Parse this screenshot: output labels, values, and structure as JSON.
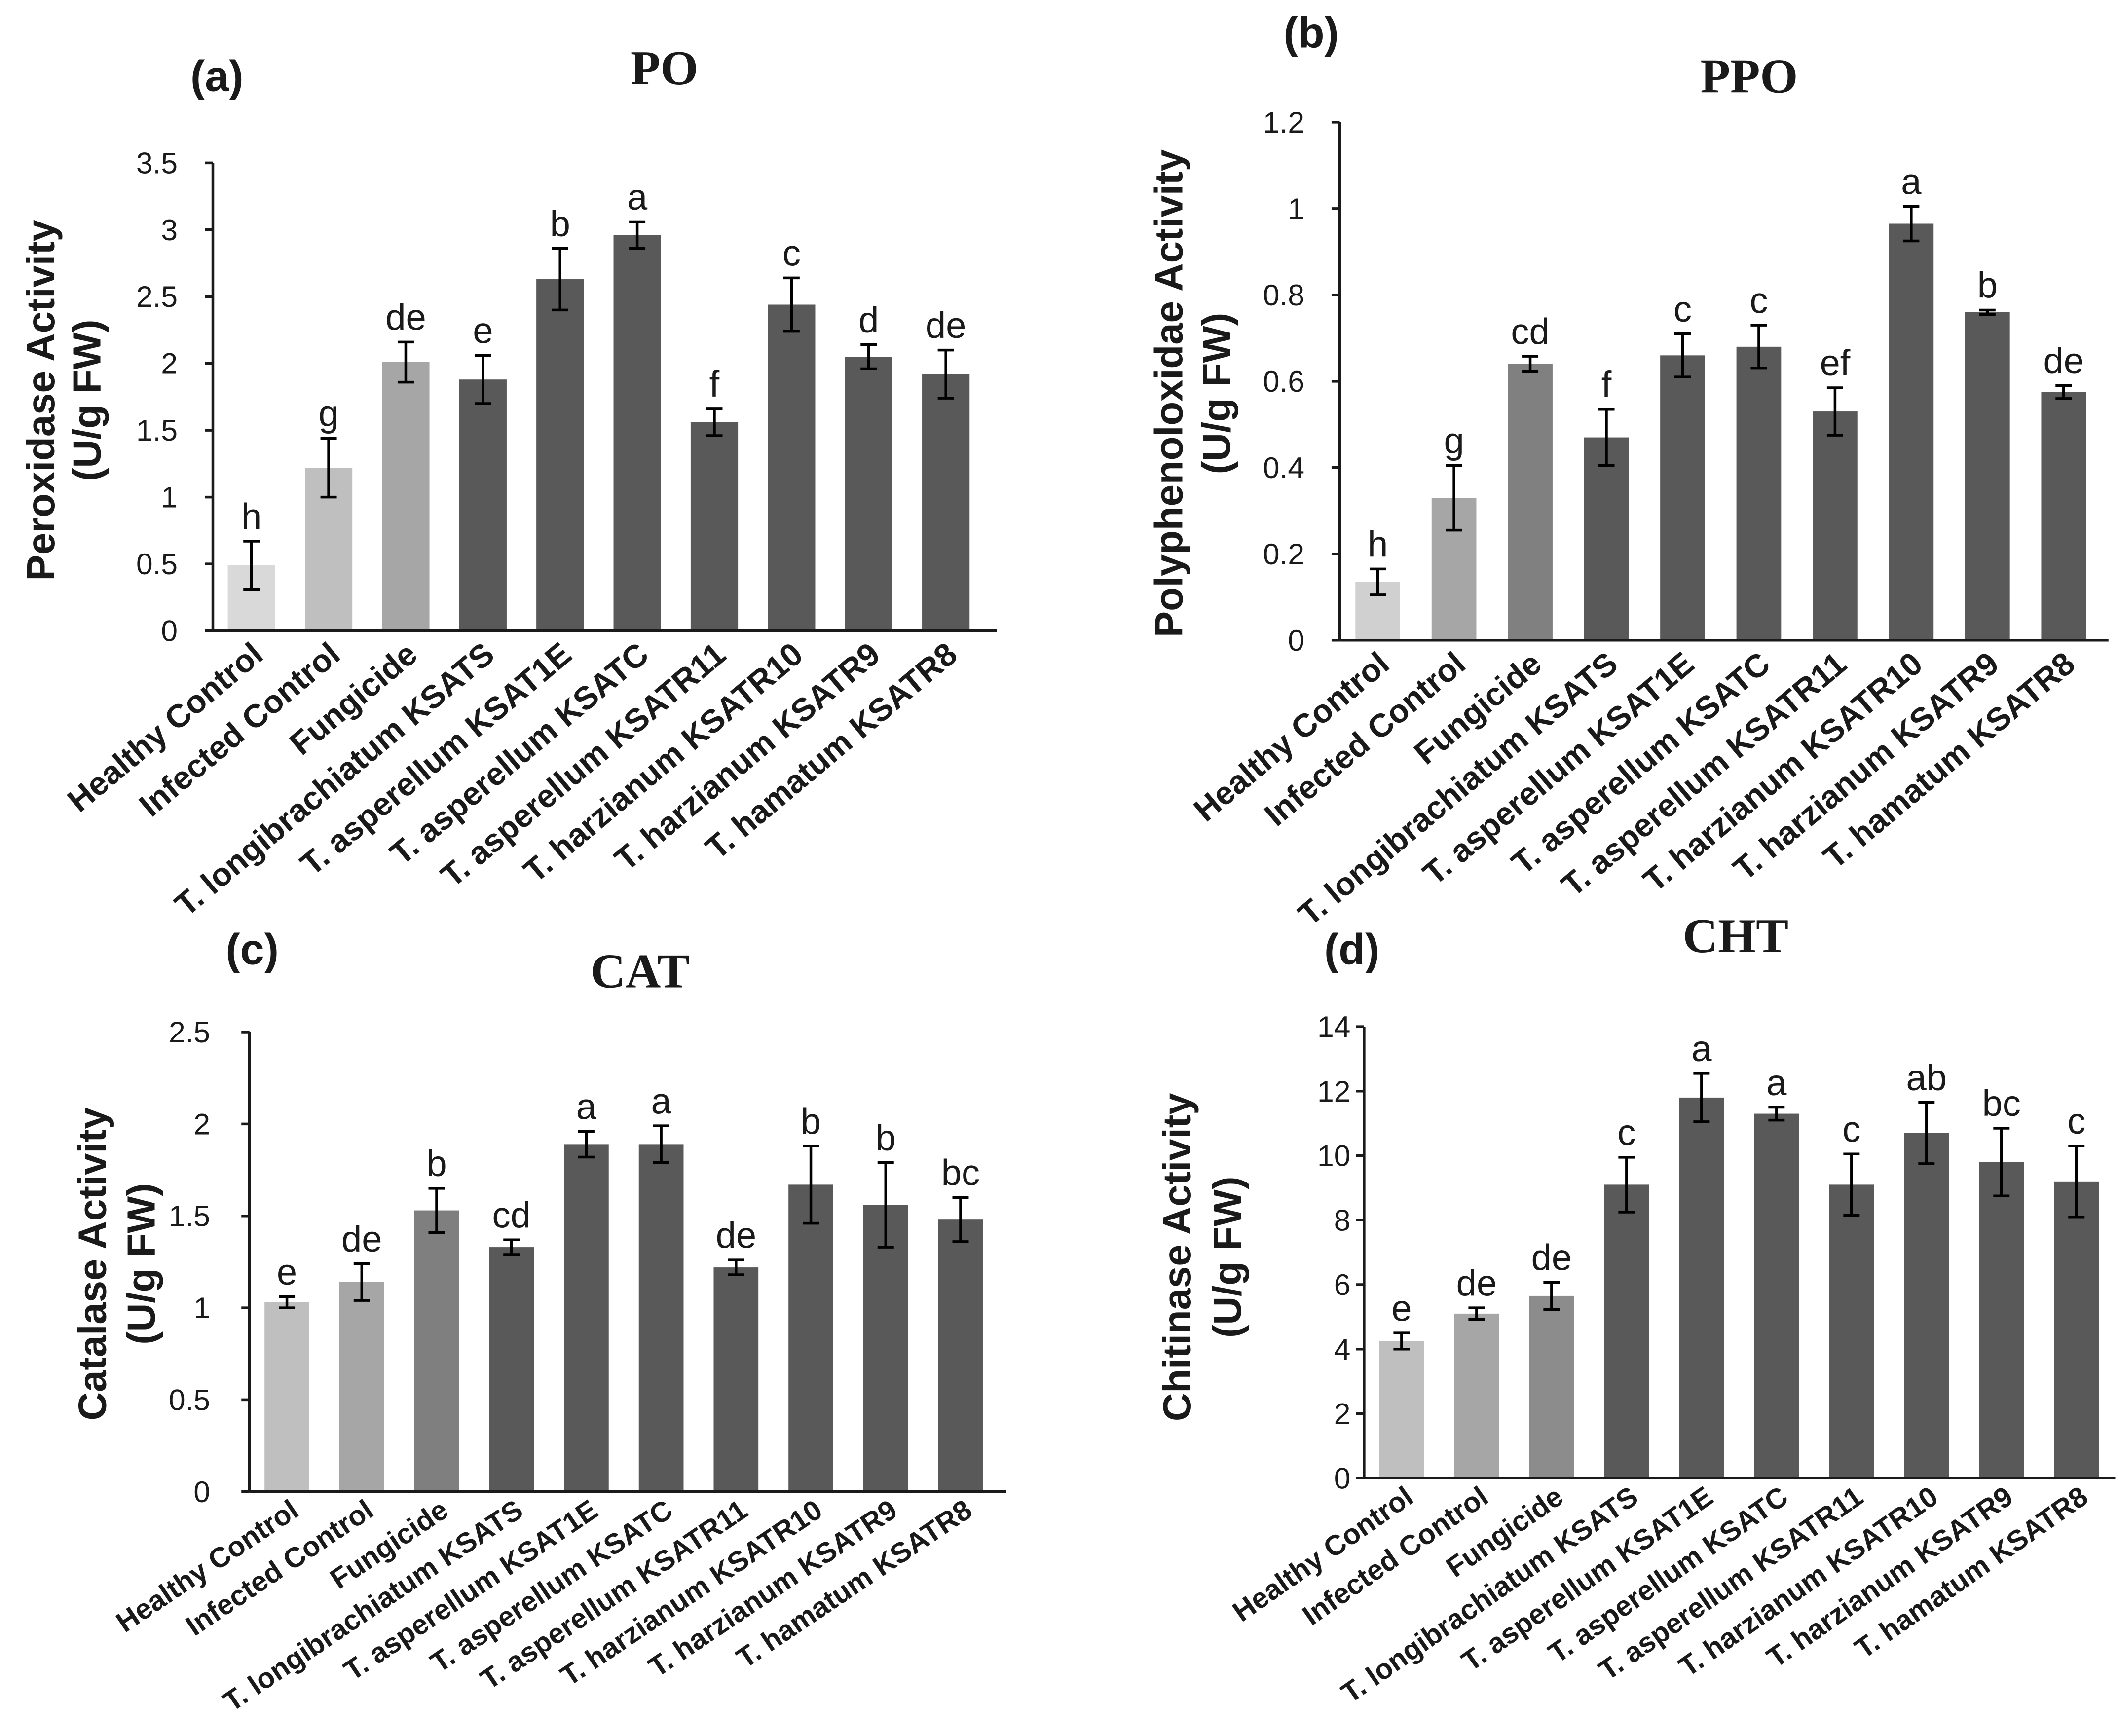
{
  "chart_data": [
    {
      "type": "bar",
      "panel_label": "(a)",
      "title": "PO",
      "ylabel": "Peroxidase Activity",
      "ylabel_units": "(U/g FW)",
      "categories": [
        "Healthy Control",
        "Infected Control",
        "Fungicide",
        "T. longibrachiatum KSATS",
        "T. asperellum KSAT1E",
        "T. asperellum KSATC",
        "T. asperellum KSATR11",
        "T. harzianum KSATR10",
        "T. harzianum KSATR9",
        "T. hamatum KSATR8"
      ],
      "values": [
        0.49,
        1.22,
        2.01,
        1.88,
        2.63,
        2.96,
        1.56,
        2.44,
        2.05,
        1.92
      ],
      "errors": [
        0.18,
        0.22,
        0.15,
        0.18,
        0.23,
        0.1,
        0.1,
        0.2,
        0.09,
        0.18
      ],
      "significance": [
        "h",
        "g",
        "de",
        "e",
        "b",
        "a",
        "f",
        "c",
        "d",
        "de"
      ],
      "ylim": [
        0,
        3.5
      ],
      "yticks": [
        0,
        0.5,
        1,
        1.5,
        2,
        2.5,
        3,
        3.5
      ],
      "bar_colors": [
        "#d9d9d9",
        "#bfbfbf",
        "#a6a6a6",
        "#595959",
        "#595959",
        "#595959",
        "#595959",
        "#595959",
        "#595959",
        "#595959"
      ]
    },
    {
      "type": "bar",
      "panel_label": "(b)",
      "title": "PPO",
      "ylabel": "Polyphenoloxidae Activity",
      "ylabel_units": "(U/g FW)",
      "categories": [
        "Healthy Control",
        "Infected Control",
        "Fungicide",
        "T. longibrachiatum KSATS",
        "T. asperellum KSAT1E",
        "T. asperellum KSATC",
        "T. asperellum KSATR11",
        "T. harzianum KSATR10",
        "T. harzianum KSATR9",
        "T. hamatum KSATR8"
      ],
      "values": [
        0.135,
        0.33,
        0.64,
        0.47,
        0.66,
        0.68,
        0.53,
        0.965,
        0.76,
        0.575
      ],
      "errors": [
        0.03,
        0.075,
        0.018,
        0.065,
        0.05,
        0.05,
        0.055,
        0.04,
        0.005,
        0.015
      ],
      "significance": [
        "h",
        "g",
        "cd",
        "f",
        "c",
        "c",
        "ef",
        "a",
        "b",
        "de"
      ],
      "ylim": [
        0,
        1.2
      ],
      "yticks": [
        0,
        0.2,
        0.4,
        0.6,
        0.8,
        1,
        1.2
      ],
      "bar_colors": [
        "#d0d0d0",
        "#a6a6a6",
        "#808080",
        "#595959",
        "#595959",
        "#595959",
        "#595959",
        "#595959",
        "#595959",
        "#595959"
      ]
    },
    {
      "type": "bar",
      "panel_label": "(c)",
      "title": "CAT",
      "ylabel": "Catalase Activity",
      "ylabel_units": "(U/g FW)",
      "categories": [
        "Healthy Control",
        "Infected Control",
        "Fungicide",
        "T. longibrachiatum KSATS",
        "T. asperellum KSAT1E",
        "T. asperellum KSATC",
        "T. asperellum KSATR11",
        "T. harzianum KSATR10",
        "T. harzianum KSATR9",
        "T. hamatum KSATR8"
      ],
      "values": [
        1.03,
        1.14,
        1.53,
        1.33,
        1.89,
        1.89,
        1.22,
        1.67,
        1.56,
        1.48
      ],
      "errors": [
        0.03,
        0.1,
        0.12,
        0.04,
        0.07,
        0.1,
        0.04,
        0.21,
        0.23,
        0.12
      ],
      "significance": [
        "e",
        "de",
        "b",
        "cd",
        "a",
        "a",
        "de",
        "b",
        "b",
        "bc"
      ],
      "ylim": [
        0,
        2.5
      ],
      "yticks": [
        0,
        0.5,
        1,
        1.5,
        2,
        2.5
      ],
      "bar_colors": [
        "#bfbfbf",
        "#a6a6a6",
        "#7f7f7f",
        "#595959",
        "#595959",
        "#595959",
        "#595959",
        "#595959",
        "#595959",
        "#595959"
      ]
    },
    {
      "type": "bar",
      "panel_label": "(d)",
      "title": "CHT",
      "ylabel": "Chitinase Activity",
      "ylabel_units": "(U/g FW)",
      "categories": [
        "Healthy Control",
        "Infected Control",
        "Fungicide",
        "T. longibrachiatum KSATS",
        "T. asperellum KSAT1E",
        "T. asperellum KSATC",
        "T. asperellum KSATR11",
        "T. harzianum KSATR10",
        "T. harzianum KSATR9",
        "T. hamatum KSATR8"
      ],
      "values": [
        4.25,
        5.1,
        5.65,
        9.1,
        11.8,
        11.3,
        9.1,
        10.7,
        9.8,
        9.2
      ],
      "errors": [
        0.25,
        0.18,
        0.42,
        0.85,
        0.75,
        0.2,
        0.95,
        0.95,
        1.05,
        1.1
      ],
      "significance": [
        "e",
        "de",
        "de",
        "c",
        "a",
        "a",
        "c",
        "ab",
        "bc",
        "c"
      ],
      "ylim": [
        0,
        14
      ],
      "yticks": [
        0,
        2,
        4,
        6,
        8,
        10,
        12,
        14
      ],
      "bar_colors": [
        "#bfbfbf",
        "#a6a6a6",
        "#8c8c8c",
        "#595959",
        "#595959",
        "#595959",
        "#595959",
        "#595959",
        "#595959",
        "#595959"
      ]
    }
  ]
}
